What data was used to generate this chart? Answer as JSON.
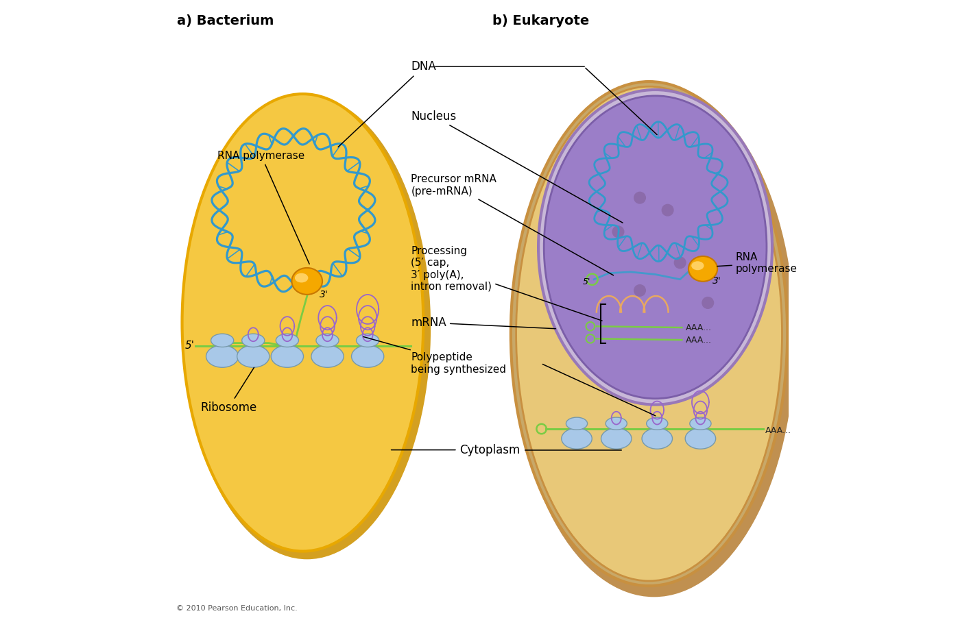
{
  "title_a": "a) Bacterium",
  "title_b": "b) Eukaryote",
  "bg_color": "#ffffff",
  "bacterium_cell_color": "#F5C842",
  "bacterium_cell_edge": "#E8A800",
  "eukaryote_outer_color": "#E8C878",
  "eukaryote_outer_edge": "#C89040",
  "eukaryote_rim_color": "#C8A868",
  "nucleus_color": "#9B7EC8",
  "nucleus_edge": "#7B5EA8",
  "nucleus_rim_color": "#C8B8D8",
  "dna_color": "#3399CC",
  "mrna_color": "#7ACC44",
  "polypeptide_color": "#9966CC",
  "ribosome_color": "#A8C8E8",
  "ribosome_edge": "#7799AA",
  "rna_pol_color": "#F5A800",
  "rna_pol_edge": "#C87800",
  "rna_pol_highlight": "#FFD060",
  "pre_mrna_color": "#4499CC",
  "cap_color": "#E8A860",
  "dot_color": "#8B6BAA",
  "copyright": "© 2010 Pearson Education, Inc."
}
